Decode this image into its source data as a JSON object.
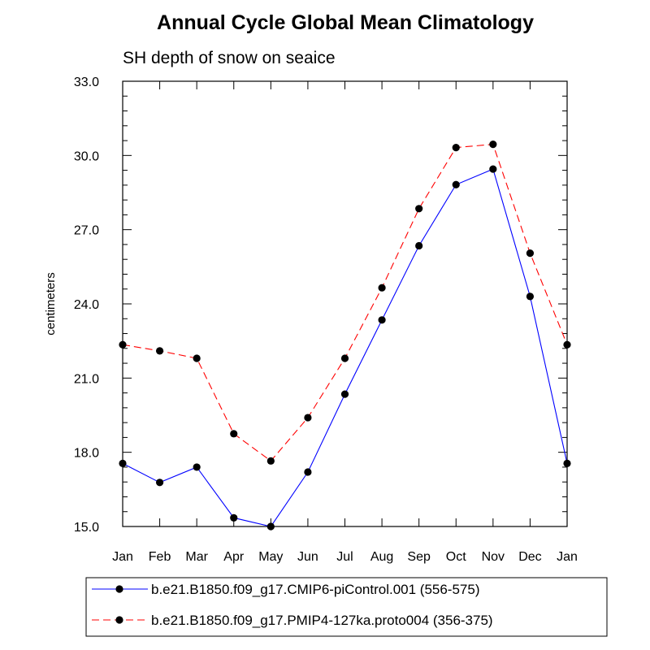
{
  "chart_data": {
    "type": "line",
    "title": "Annual Cycle Global Mean Climatology",
    "subtitle": "SH depth of snow on seaice",
    "xlabel": "",
    "ylabel": "centimeters",
    "categories": [
      "Jan",
      "Feb",
      "Mar",
      "Apr",
      "May",
      "Jun",
      "Jul",
      "Aug",
      "Sep",
      "Oct",
      "Nov",
      "Dec",
      "Jan"
    ],
    "ylim": [
      15.0,
      33.0
    ],
    "yticks": [
      "15.0",
      "18.0",
      "21.0",
      "24.0",
      "27.0",
      "30.0",
      "33.0"
    ],
    "grid": false,
    "legend_position": "bottom",
    "series": [
      {
        "name": "b.e21.B1850.f09_g17.CMIP6-piControl.001 (556-575)",
        "color": "#0000ff",
        "dash": "solid",
        "marker": "circle",
        "values": [
          17.55,
          16.78,
          17.4,
          15.35,
          15.0,
          17.2,
          20.35,
          23.35,
          26.35,
          28.82,
          29.45,
          24.3,
          17.55
        ]
      },
      {
        "name": "b.e21.B1850.f09_g17.PMIP4-127ka.proto004 (356-375)",
        "color": "#ff0000",
        "dash": "dashed",
        "marker": "circle",
        "values": [
          22.35,
          22.1,
          21.8,
          18.75,
          17.65,
          19.4,
          21.8,
          24.65,
          27.85,
          30.32,
          30.45,
          26.05,
          22.35
        ]
      }
    ]
  }
}
